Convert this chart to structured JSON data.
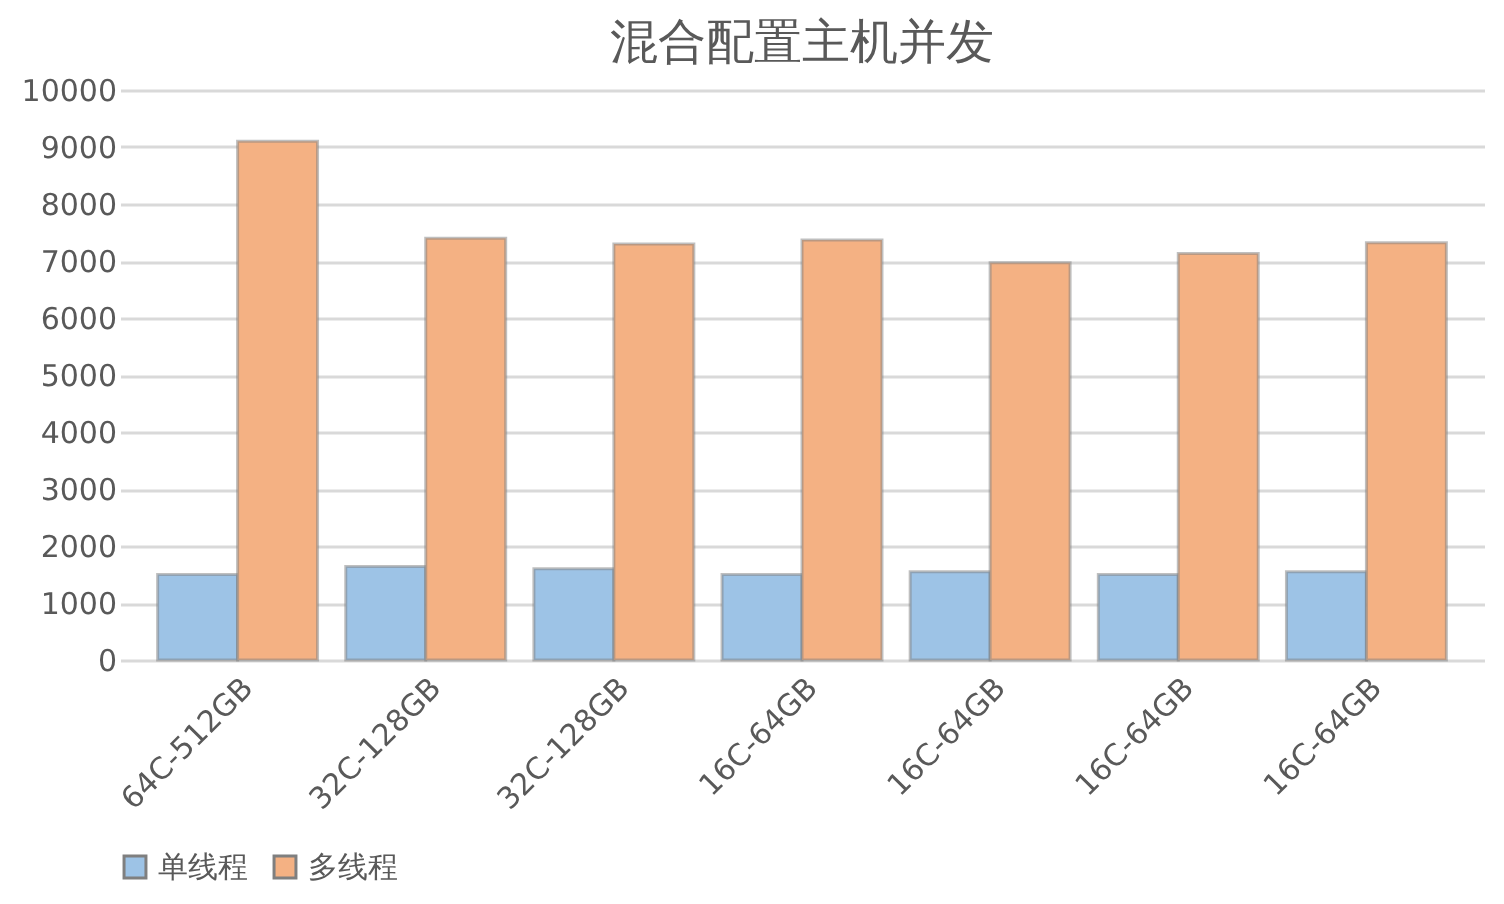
{
  "chart_data": {
    "type": "bar",
    "title": "混合配置主机并发",
    "categories": [
      "64C-512GB",
      "32C-128GB",
      "32C-128GB",
      "16C-64GB",
      "16C-64GB",
      "16C-64GB",
      "16C-64GB"
    ],
    "series": [
      {
        "name": "单线程",
        "color": "#9dc3e6",
        "values": [
          1500,
          1640,
          1600,
          1500,
          1550,
          1500,
          1550
        ]
      },
      {
        "name": "多线程",
        "color": "#f4b183",
        "values": [
          9100,
          7400,
          7300,
          7370,
          6970,
          7130,
          7320
        ]
      }
    ],
    "ylim": [
      0,
      10000
    ],
    "yticks": [
      0,
      1000,
      2000,
      3000,
      4000,
      5000,
      6000,
      7000,
      8000,
      9000,
      10000
    ],
    "grid": "y",
    "legend": "bottom"
  }
}
